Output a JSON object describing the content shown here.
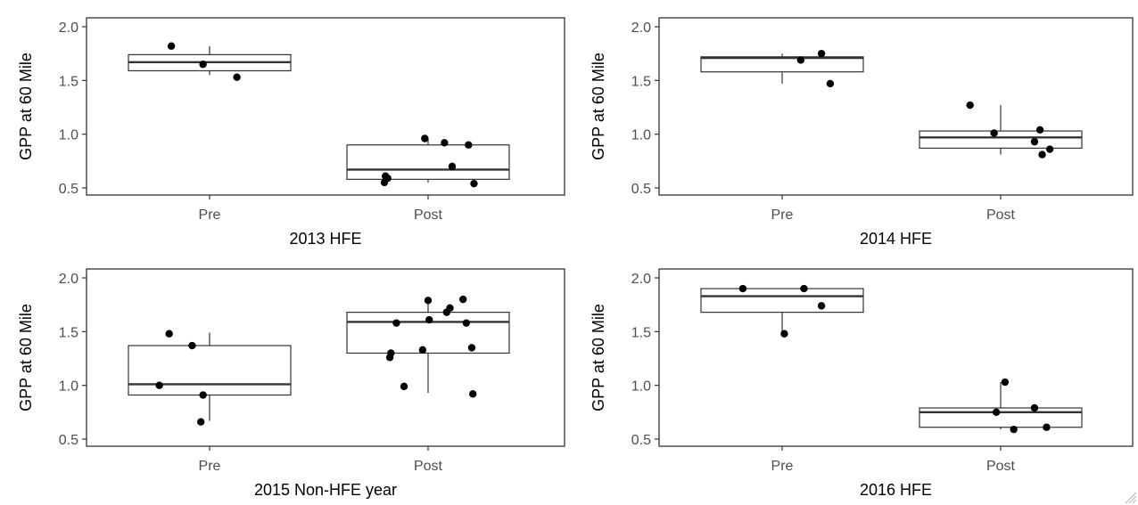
{
  "chart_data": [
    {
      "type": "box",
      "xlabel": "2013 HFE",
      "ylabel": "GPP at 60 Mile",
      "categories": [
        "Pre",
        "Post"
      ],
      "ylim": [
        0.45,
        2.05
      ],
      "yticks": [
        0.5,
        1.0,
        1.5,
        2.0
      ],
      "ytick_labels": [
        "0.5",
        "1.0",
        "1.5",
        "2.0"
      ],
      "boxes": [
        {
          "category": "Pre",
          "whisker_low": 1.55,
          "q1": 1.59,
          "median": 1.67,
          "q3": 1.74,
          "whisker_high": 1.82
        },
        {
          "category": "Post",
          "whisker_low": 0.55,
          "q1": 0.58,
          "median": 0.67,
          "q3": 0.9,
          "whisker_high": 0.96
        }
      ],
      "points": [
        {
          "category": "Pre",
          "jitter": -0.35,
          "y": 1.82
        },
        {
          "category": "Pre",
          "jitter": -0.06,
          "y": 1.65
        },
        {
          "category": "Pre",
          "jitter": 0.25,
          "y": 1.53
        },
        {
          "category": "Post",
          "jitter": -0.39,
          "y": 0.61
        },
        {
          "category": "Post",
          "jitter": -0.37,
          "y": 0.59
        },
        {
          "category": "Post",
          "jitter": -0.4,
          "y": 0.55
        },
        {
          "category": "Post",
          "jitter": -0.03,
          "y": 0.96
        },
        {
          "category": "Post",
          "jitter": 0.15,
          "y": 0.92
        },
        {
          "category": "Post",
          "jitter": 0.22,
          "y": 0.7
        },
        {
          "category": "Post",
          "jitter": 0.37,
          "y": 0.9
        },
        {
          "category": "Post",
          "jitter": 0.42,
          "y": 0.54
        }
      ]
    },
    {
      "type": "box",
      "xlabel": "2014 HFE",
      "ylabel": "GPP at 60 Mile",
      "categories": [
        "Pre",
        "Post"
      ],
      "ylim": [
        0.45,
        2.05
      ],
      "yticks": [
        0.5,
        1.0,
        1.5,
        2.0
      ],
      "ytick_labels": [
        "0.5",
        "1.0",
        "1.5",
        "2.0"
      ],
      "boxes": [
        {
          "category": "Pre",
          "whisker_low": 1.47,
          "q1": 1.58,
          "median": 1.71,
          "q3": 1.72,
          "whisker_high": 1.75
        },
        {
          "category": "Post",
          "whisker_low": 0.81,
          "q1": 0.87,
          "median": 0.97,
          "q3": 1.03,
          "whisker_high": 1.27
        }
      ],
      "points": [
        {
          "category": "Pre",
          "jitter": 0.17,
          "y": 1.69
        },
        {
          "category": "Pre",
          "jitter": 0.36,
          "y": 1.75
        },
        {
          "category": "Pre",
          "jitter": 0.44,
          "y": 1.47
        },
        {
          "category": "Post",
          "jitter": -0.28,
          "y": 1.27
        },
        {
          "category": "Post",
          "jitter": -0.06,
          "y": 1.01
        },
        {
          "category": "Post",
          "jitter": 0.31,
          "y": 0.93
        },
        {
          "category": "Post",
          "jitter": 0.36,
          "y": 1.04
        },
        {
          "category": "Post",
          "jitter": 0.38,
          "y": 0.81
        },
        {
          "category": "Post",
          "jitter": 0.45,
          "y": 0.86
        }
      ]
    },
    {
      "type": "box",
      "xlabel": "2015 Non-HFE year",
      "ylabel": "GPP at 60 Mile",
      "categories": [
        "Pre",
        "Post"
      ],
      "ylim": [
        0.45,
        2.05
      ],
      "yticks": [
        0.5,
        1.0,
        1.5,
        2.0
      ],
      "ytick_labels": [
        "0.5",
        "1.0",
        "1.5",
        "2.0"
      ],
      "boxes": [
        {
          "category": "Pre",
          "whisker_low": 0.67,
          "q1": 0.91,
          "median": 1.01,
          "q3": 1.37,
          "whisker_high": 1.49
        },
        {
          "category": "Post",
          "whisker_low": 0.93,
          "q1": 1.3,
          "median": 1.59,
          "q3": 1.68,
          "whisker_high": 1.79
        }
      ],
      "points": [
        {
          "category": "Pre",
          "jitter": -0.46,
          "y": 1.0
        },
        {
          "category": "Pre",
          "jitter": -0.37,
          "y": 1.48
        },
        {
          "category": "Pre",
          "jitter": -0.16,
          "y": 1.37
        },
        {
          "category": "Pre",
          "jitter": -0.08,
          "y": 0.66
        },
        {
          "category": "Pre",
          "jitter": -0.06,
          "y": 0.91
        },
        {
          "category": "Post",
          "jitter": -0.35,
          "y": 1.26
        },
        {
          "category": "Post",
          "jitter": -0.34,
          "y": 1.3
        },
        {
          "category": "Post",
          "jitter": -0.29,
          "y": 1.58
        },
        {
          "category": "Post",
          "jitter": -0.22,
          "y": 0.99
        },
        {
          "category": "Post",
          "jitter": -0.05,
          "y": 1.33
        },
        {
          "category": "Post",
          "jitter": 0.0,
          "y": 1.79
        },
        {
          "category": "Post",
          "jitter": 0.01,
          "y": 1.61
        },
        {
          "category": "Post",
          "jitter": 0.17,
          "y": 1.68
        },
        {
          "category": "Post",
          "jitter": 0.2,
          "y": 1.72
        },
        {
          "category": "Post",
          "jitter": 0.32,
          "y": 1.8
        },
        {
          "category": "Post",
          "jitter": 0.35,
          "y": 1.58
        },
        {
          "category": "Post",
          "jitter": 0.4,
          "y": 1.35
        },
        {
          "category": "Post",
          "jitter": 0.41,
          "y": 0.92
        }
      ]
    },
    {
      "type": "box",
      "xlabel": "2016 HFE",
      "ylabel": "GPP at 60 Mile",
      "categories": [
        "Pre",
        "Post"
      ],
      "ylim": [
        0.45,
        2.05
      ],
      "yticks": [
        0.5,
        1.0,
        1.5,
        2.0
      ],
      "ytick_labels": [
        "0.5",
        "1.0",
        "1.5",
        "2.0"
      ],
      "boxes": [
        {
          "category": "Pre",
          "whisker_low": 1.48,
          "q1": 1.68,
          "median": 1.83,
          "q3": 1.9,
          "whisker_high": 1.9
        },
        {
          "category": "Post",
          "whisker_low": 0.59,
          "q1": 0.61,
          "median": 0.75,
          "q3": 0.79,
          "whisker_high": 1.03
        }
      ],
      "points": [
        {
          "category": "Pre",
          "jitter": -0.36,
          "y": 1.9
        },
        {
          "category": "Pre",
          "jitter": 0.02,
          "y": 1.48
        },
        {
          "category": "Pre",
          "jitter": 0.2,
          "y": 1.9
        },
        {
          "category": "Pre",
          "jitter": 0.36,
          "y": 1.74
        },
        {
          "category": "Post",
          "jitter": -0.04,
          "y": 0.75
        },
        {
          "category": "Post",
          "jitter": 0.04,
          "y": 1.03
        },
        {
          "category": "Post",
          "jitter": 0.12,
          "y": 0.59
        },
        {
          "category": "Post",
          "jitter": 0.31,
          "y": 0.79
        },
        {
          "category": "Post",
          "jitter": 0.42,
          "y": 0.61
        }
      ]
    }
  ]
}
